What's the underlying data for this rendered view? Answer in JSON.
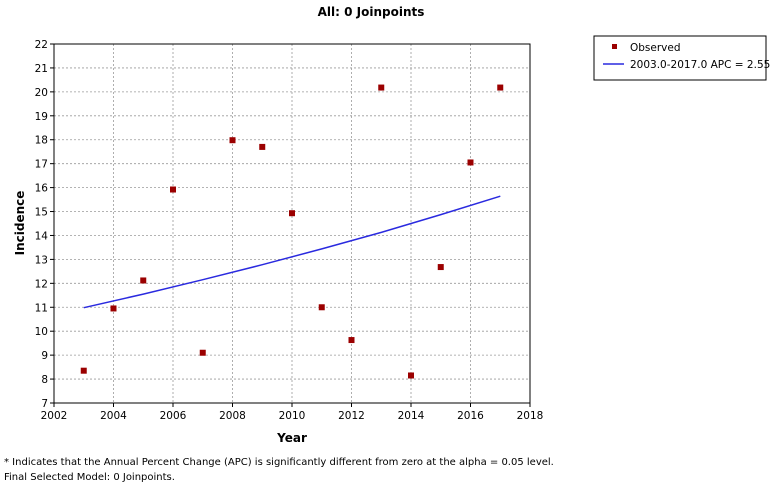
{
  "chart_data": {
    "type": "scatter",
    "title": "All: 0 Joinpoints",
    "xlabel": "Year",
    "ylabel": "Incidence",
    "xlim": [
      2002,
      2018
    ],
    "ylim": [
      7,
      22
    ],
    "xticks": [
      2002,
      2004,
      2006,
      2008,
      2010,
      2012,
      2014,
      2016,
      2018
    ],
    "yticks": [
      7,
      8,
      9,
      10,
      11,
      12,
      13,
      14,
      15,
      16,
      17,
      18,
      19,
      20,
      21,
      22
    ],
    "grid": true,
    "legend_position": "top-right-outside",
    "series": [
      {
        "name": "Observed",
        "kind": "scatter",
        "color": "#9b0000",
        "x": [
          2003,
          2004,
          2005,
          2006,
          2007,
          2008,
          2009,
          2010,
          2011,
          2012,
          2013,
          2014,
          2015,
          2016,
          2017
        ],
        "y": [
          8.35,
          10.95,
          12.12,
          15.92,
          9.1,
          17.98,
          17.7,
          14.93,
          11.0,
          9.63,
          20.18,
          8.15,
          12.68,
          17.05,
          20.18
        ]
      },
      {
        "name": "2003.0-2017.0 APC  = 2.55",
        "kind": "line",
        "color": "#2a2adf",
        "x": [
          2003,
          2005,
          2007,
          2009,
          2011,
          2013,
          2015,
          2017
        ],
        "y": [
          10.98,
          11.55,
          12.15,
          12.78,
          13.44,
          14.13,
          14.87,
          15.64
        ]
      }
    ]
  },
  "footnotes": {
    "line1": "* Indicates that the Annual Percent Change (APC) is significantly different from zero at the alpha = 0.05 level.",
    "line2": "Final Selected Model: 0 Joinpoints."
  }
}
